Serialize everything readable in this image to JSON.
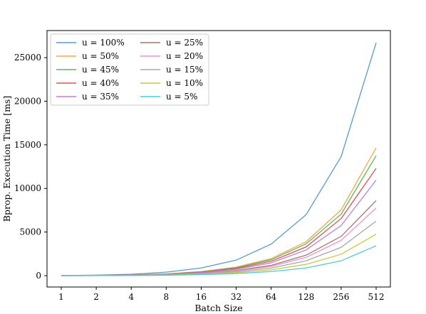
{
  "chart_data": {
    "type": "line",
    "title": "",
    "xlabel": "Batch Size",
    "ylabel": "Bprop. Execution Time [ms]",
    "categories": [
      "1",
      "2",
      "4",
      "8",
      "16",
      "32",
      "64",
      "128",
      "256",
      "512"
    ],
    "ylim": [
      -1300,
      28100
    ],
    "yticks": [
      0,
      5000,
      10000,
      15000,
      20000,
      25000
    ],
    "ytick_labels": [
      "0",
      "5000",
      "10000",
      "15000",
      "20000",
      "25000"
    ],
    "grid": false,
    "legend_position": "top-left",
    "legend_columns": 2,
    "series": [
      {
        "name": "u = 100%",
        "color": "#5a9ac6",
        "values": [
          20,
          60,
          160,
          400,
          880,
          1780,
          3620,
          7000,
          13650,
          26700
        ]
      },
      {
        "name": "u = 50%",
        "color": "#f5a54e",
        "values": [
          10,
          30,
          80,
          200,
          470,
          980,
          1950,
          3900,
          7550,
          14650
        ]
      },
      {
        "name": "u = 45%",
        "color": "#5cb85c",
        "values": [
          9,
          28,
          75,
          185,
          440,
          920,
          1830,
          3650,
          7050,
          13750
        ]
      },
      {
        "name": "u = 40%",
        "color": "#e0514d",
        "values": [
          8,
          25,
          68,
          170,
          400,
          830,
          1650,
          3300,
          6550,
          12300
        ]
      },
      {
        "name": "u = 35%",
        "color": "#b882d4",
        "values": [
          7,
          22,
          60,
          150,
          360,
          740,
          1460,
          2950,
          5750,
          10950
        ]
      },
      {
        "name": "u = 25%",
        "color": "#9c7a6c",
        "values": [
          6,
          18,
          50,
          125,
          290,
          600,
          1180,
          2350,
          4500,
          8600
        ]
      },
      {
        "name": "u = 20%",
        "color": "#ee92d0",
        "values": [
          5,
          16,
          45,
          112,
          260,
          540,
          1060,
          2100,
          4050,
          7750
        ]
      },
      {
        "name": "u = 15%",
        "color": "#a9a9a9",
        "values": [
          4,
          13,
          38,
          92,
          215,
          450,
          880,
          1700,
          3250,
          6250
        ]
      },
      {
        "name": "u = 10%",
        "color": "#c3c94a",
        "values": [
          3,
          10,
          30,
          72,
          165,
          345,
          670,
          1300,
          2450,
          4750
        ]
      },
      {
        "name": "u = 5%",
        "color": "#4ec9d6",
        "values": [
          2,
          7,
          20,
          50,
          115,
          240,
          470,
          880,
          1700,
          3430
        ]
      }
    ]
  }
}
